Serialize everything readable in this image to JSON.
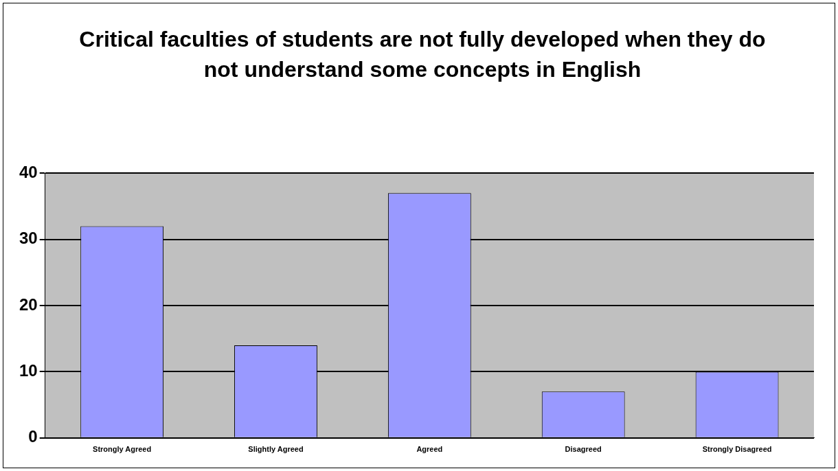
{
  "chart_data": {
    "type": "bar",
    "title": "Critical faculties of students are not fully developed when they do not understand some concepts in English",
    "categories": [
      "Strongly Agreed",
      "Slightly Agreed",
      "Agreed",
      "Disagreed",
      "Strongly Disagreed"
    ],
    "values": [
      32,
      14,
      37,
      7,
      10
    ],
    "color": "#9999ff",
    "ylim": [
      0,
      40
    ],
    "yticks": [
      0,
      10,
      20,
      30,
      40
    ],
    "grid": "y"
  }
}
